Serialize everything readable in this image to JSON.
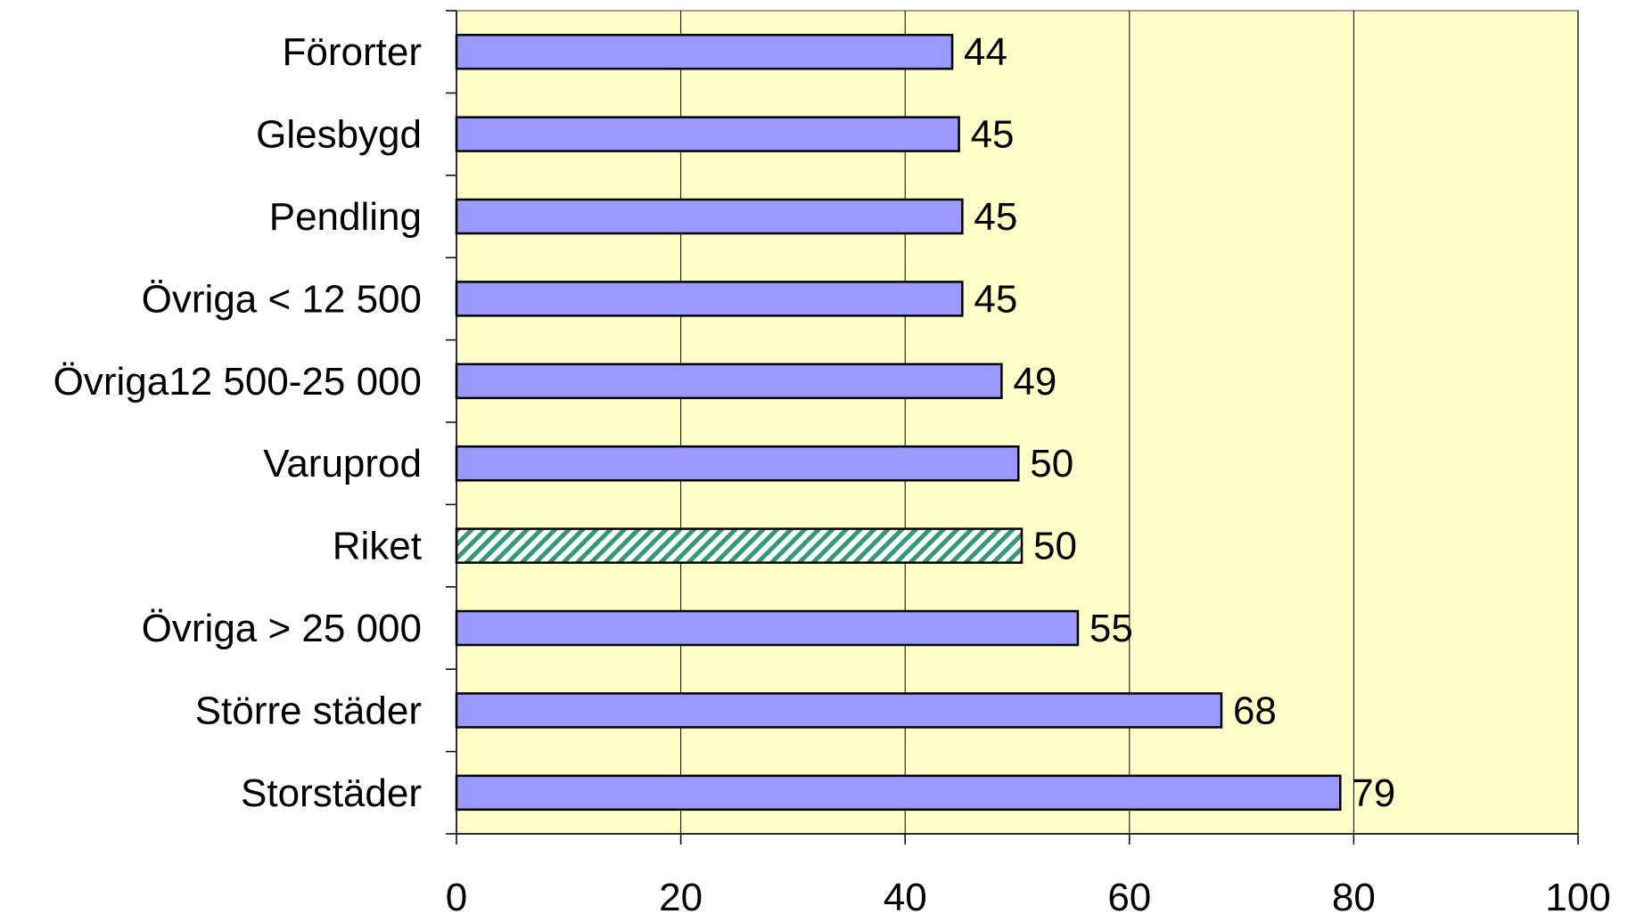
{
  "chart_data": {
    "type": "bar",
    "orientation": "horizontal",
    "categories": [
      "Förorter",
      "Glesbygd",
      "Pendling",
      "Övriga < 12 500",
      "Övriga12 500-25 000",
      "Varuprod",
      "Riket",
      "Övriga > 25 000",
      "Större städer",
      "Storstäder"
    ],
    "values": [
      44.2,
      44.8,
      45.1,
      45.1,
      48.6,
      50.1,
      50.4,
      55.4,
      68.2,
      78.8
    ],
    "data_labels": [
      "44",
      "45",
      "45",
      "45",
      "49",
      "50",
      "50",
      "55",
      "68",
      "79"
    ],
    "highlight_category": "Riket",
    "xlim": [
      0,
      100
    ],
    "x_ticks": [
      0,
      20,
      40,
      60,
      80,
      100
    ],
    "x_tick_labels": [
      "0",
      "20",
      "40",
      "60",
      "80",
      "100"
    ],
    "title": "",
    "xlabel": "",
    "ylabel": "",
    "grid": "vertical",
    "legend": "none",
    "colors": {
      "plot_background": "#FFFFC8",
      "bar_fill": "#9999FF",
      "highlight_stripe": "#339977",
      "bar_border": "#000000",
      "gridline": "#000000"
    }
  }
}
